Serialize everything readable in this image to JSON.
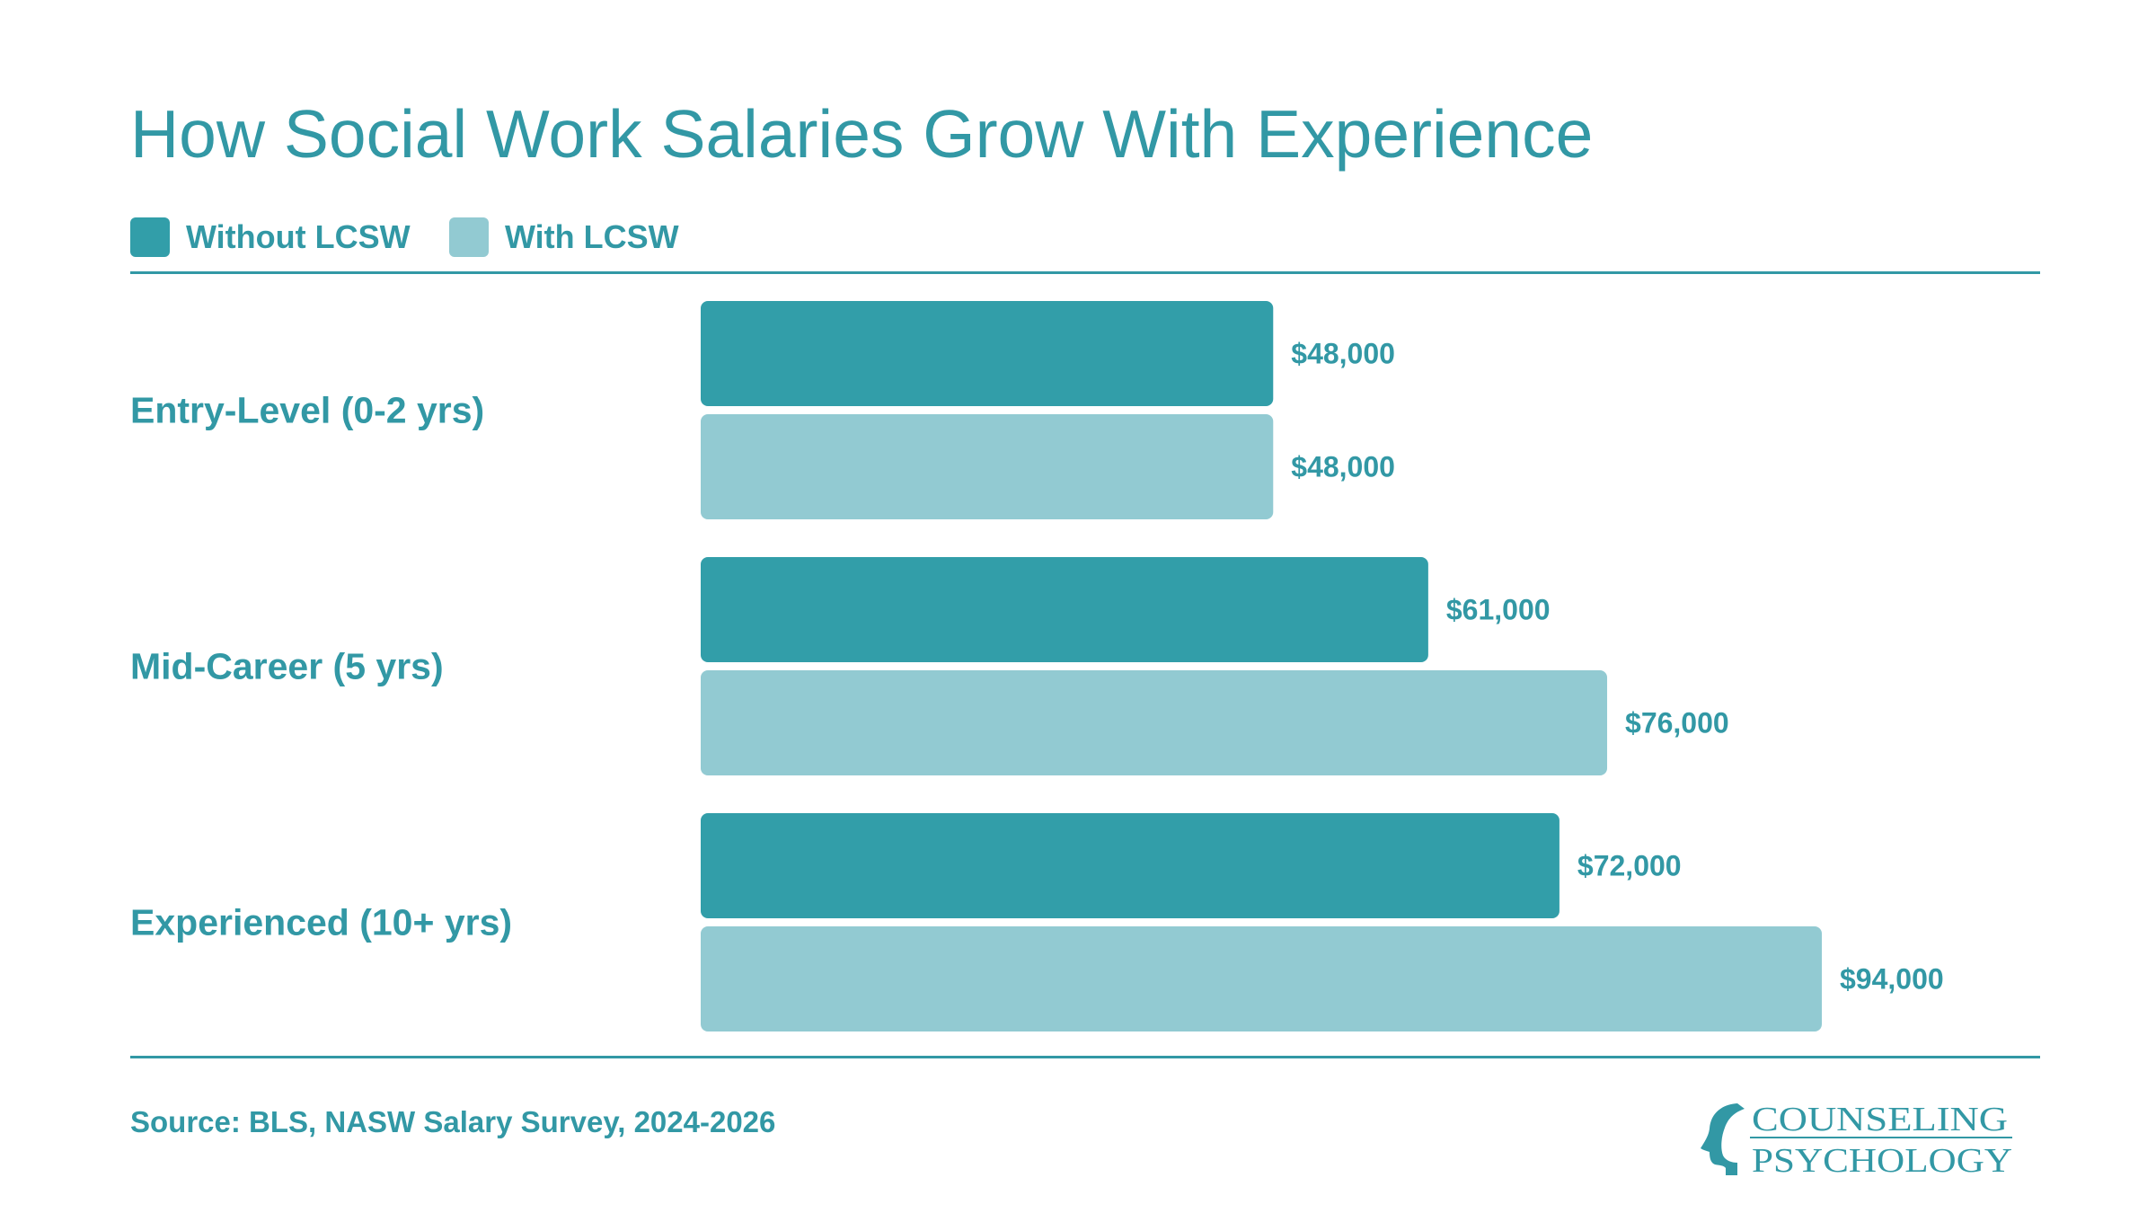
{
  "colors": {
    "accent": "#3298a5",
    "without_lcsw": "#329ea9",
    "with_lcsw": "#92cad2",
    "label_text": "#3298a5"
  },
  "logo": {
    "line1": "COUNSELING",
    "line2": "PSYCHOLOGY"
  },
  "source": "Source: BLS, NASW Salary Survey, 2024-2026",
  "chart_data": {
    "type": "bar",
    "orientation": "horizontal",
    "title": "How Social Work Salaries Grow With Experience",
    "categories": [
      "Entry-Level (0-2 yrs)",
      "Mid-Career (5 yrs)",
      "Experienced (10+ yrs)"
    ],
    "series": [
      {
        "name": "Without LCSW",
        "color": "#329ea9",
        "values": [
          48000,
          61000,
          72000
        ],
        "labels": [
          "$48,000",
          "$61,000",
          "$72,000"
        ]
      },
      {
        "name": "With LCSW",
        "color": "#92cad2",
        "values": [
          48000,
          76000,
          94000
        ],
        "labels": [
          "$48,000",
          "$76,000",
          "$94,000"
        ]
      }
    ],
    "xlim": [
      0,
      94000
    ],
    "grid": false,
    "legend": "top-left",
    "xlabel": "",
    "ylabel": ""
  }
}
